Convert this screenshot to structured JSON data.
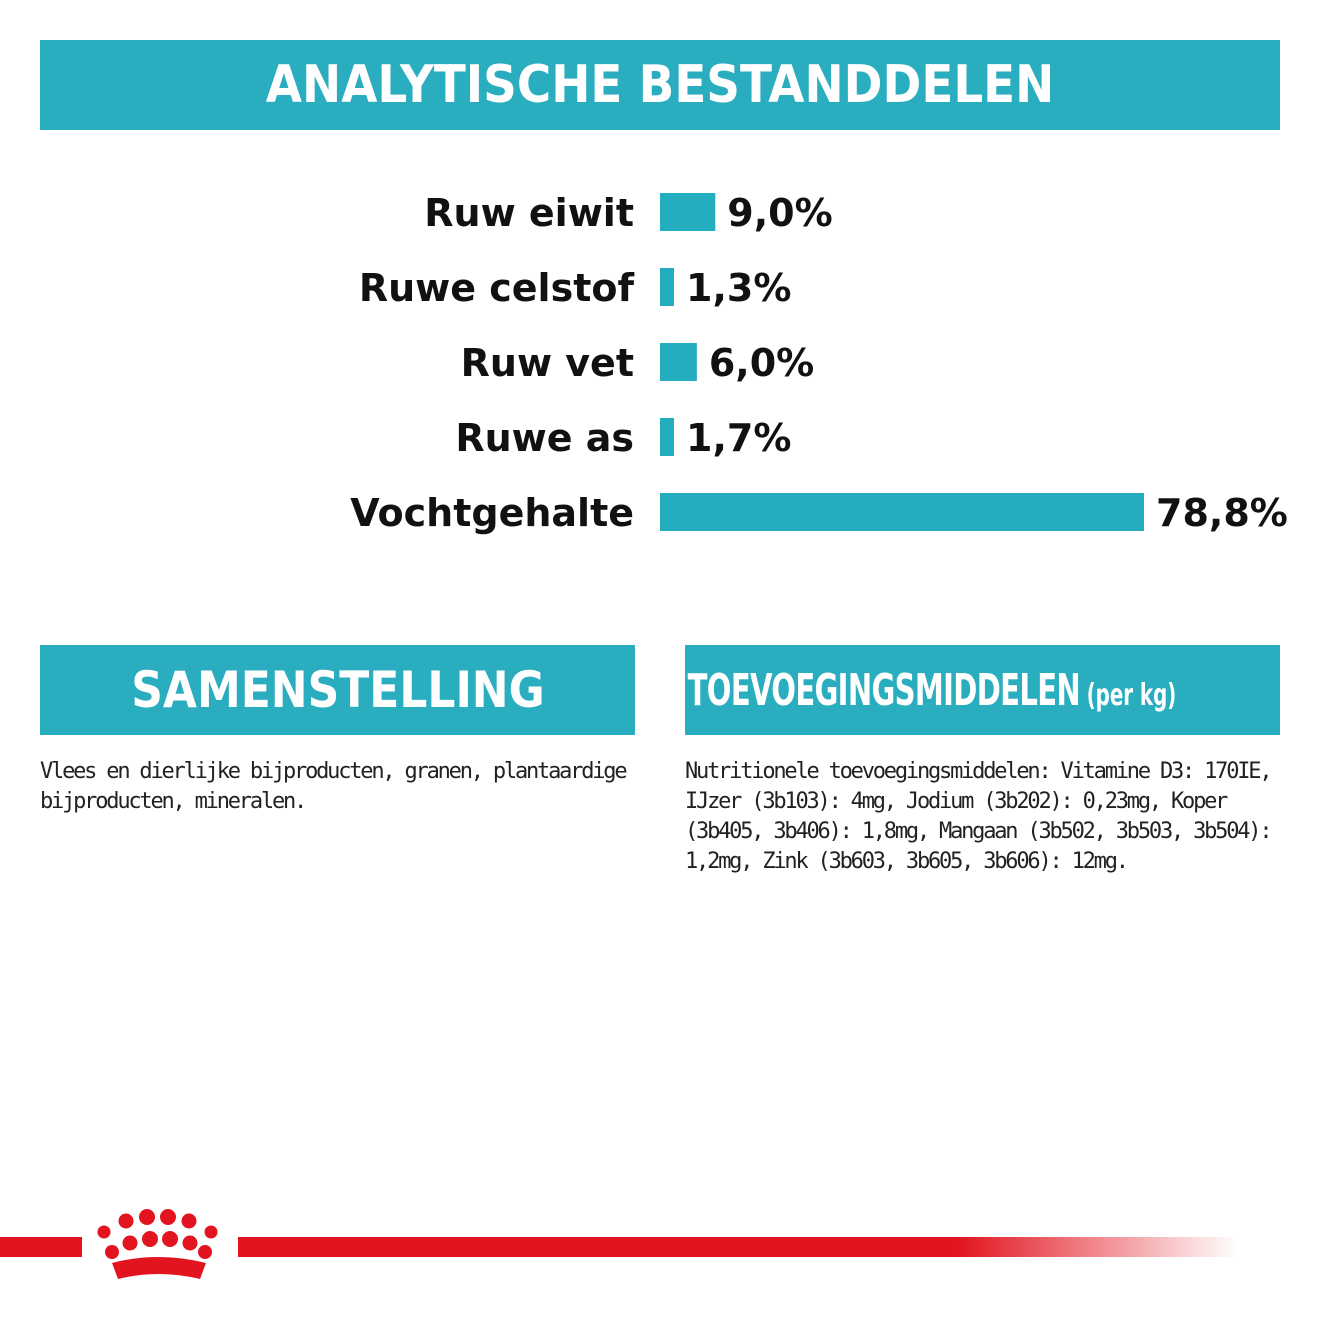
{
  "colors": {
    "accent": "#2aaebf",
    "bar": "#24adbf",
    "brand_red": "#e2141f",
    "text": "#111111"
  },
  "banner": {
    "title": "ANALYTISCHE BESTANDDELEN"
  },
  "chart_data": {
    "type": "bar",
    "orientation": "horizontal",
    "categories": [
      "Ruw eiwit",
      "Ruwe celstof",
      "Ruw vet",
      "Ruwe as",
      "Vochtgehalte"
    ],
    "values": [
      9.0,
      1.3,
      6.0,
      1.7,
      78.8
    ],
    "data_labels": [
      "9,0%",
      "1,3%",
      "6,0%",
      "1,7%",
      "78,8%"
    ],
    "unit": "%",
    "xlim": [
      0,
      78.8
    ],
    "grid": false,
    "legend": "none"
  },
  "composition": {
    "heading": "SAMENSTELLING",
    "text": "Vlees en dierlijke bijproducten, granen, plantaardige bijproducten, mineralen."
  },
  "additives": {
    "heading": "TOEVOEGINGSMIDDELEN",
    "subheading": "(per kg)",
    "text": "Nutritionele toevoegingsmiddelen: Vitamine D3: 170IE, IJzer (3b103): 4mg, Jodium (3b202): 0,23mg, Koper (3b405, 3b406): 1,8mg, Mangaan (3b502, 3b503, 3b504): 1,2mg, Zink (3b603, 3b605, 3b606): 12mg."
  },
  "footer": {
    "logo_icon": "crown-icon"
  }
}
